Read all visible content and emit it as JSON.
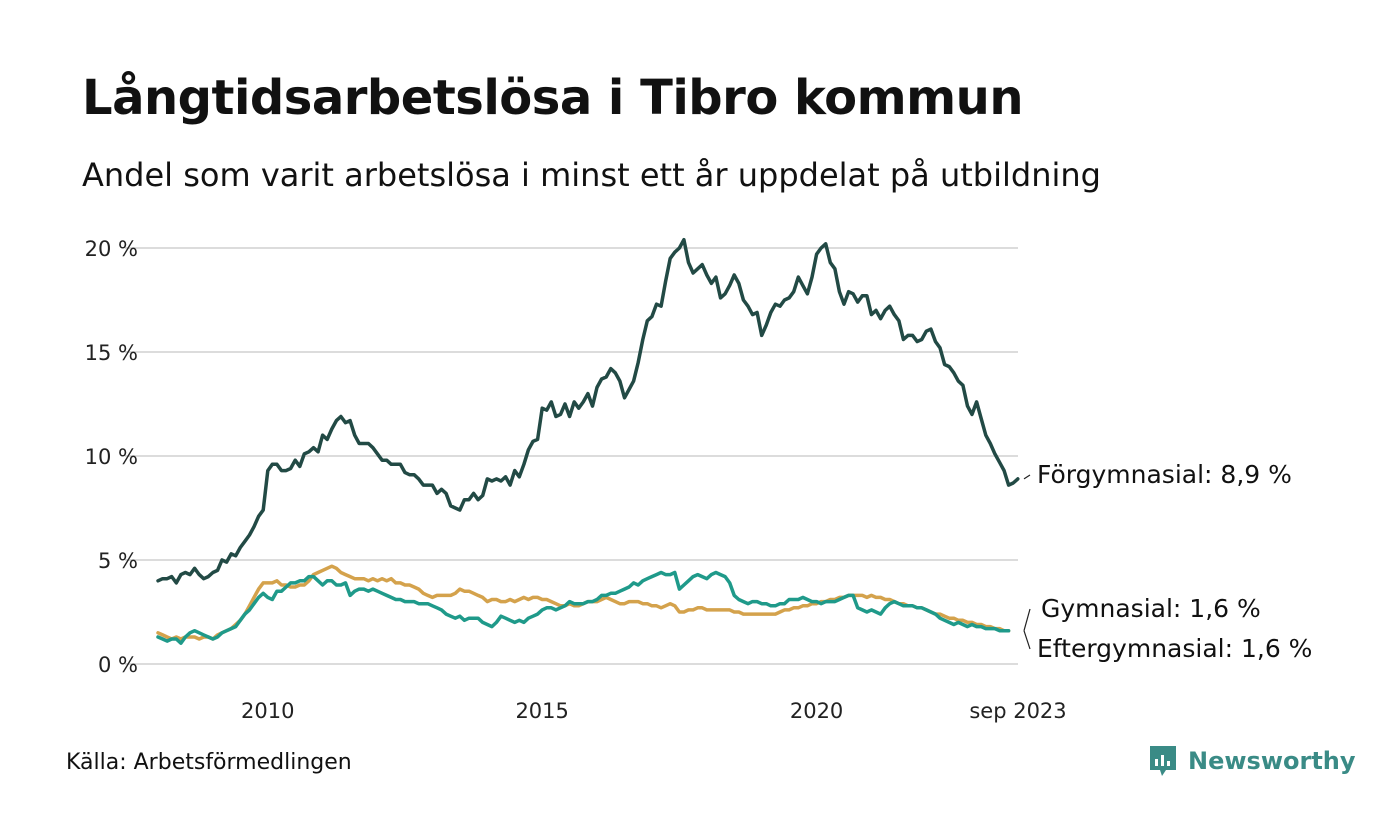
{
  "title": "Långtidsarbetslösa i Tibro kommun",
  "subtitle": "Andel som varit arbetslösa i minst ett år uppdelat på utbildning",
  "source": "Källa: Arbetsförmedlingen",
  "brand": {
    "name": "Newsworthy",
    "icon": "newsworthy-logo-icon",
    "color": "#3a8b86"
  },
  "chart_data": {
    "type": "line",
    "title": "Långtidsarbetslösa i Tibro kommun",
    "xlabel": "",
    "ylabel": "",
    "x_start": 2008.0,
    "x_step": 0.08333,
    "xlim": [
      2008.0,
      2023.67
    ],
    "ylim": [
      0,
      20
    ],
    "grid": true,
    "y_ticks": [
      {
        "value": 0,
        "label": "0 %"
      },
      {
        "value": 5,
        "label": "5 %"
      },
      {
        "value": 10,
        "label": "10 %"
      },
      {
        "value": 15,
        "label": "15 %"
      },
      {
        "value": 20,
        "label": "20 %"
      }
    ],
    "x_ticks": [
      {
        "value": 2010,
        "label": "2010"
      },
      {
        "value": 2015,
        "label": "2015"
      },
      {
        "value": 2020,
        "label": "2020"
      },
      {
        "value": 2023.67,
        "label": "sep 2023"
      }
    ],
    "series": [
      {
        "name": "Förgymnasial",
        "label": "Förgymnasial: 8,9 %",
        "color": "#224a45",
        "values": [
          4.0,
          4.1,
          4.1,
          4.2,
          3.9,
          4.3,
          4.4,
          4.3,
          4.6,
          4.3,
          4.1,
          4.2,
          4.4,
          4.5,
          5.0,
          4.9,
          5.3,
          5.2,
          5.6,
          5.9,
          6.2,
          6.6,
          7.1,
          7.4,
          9.3,
          9.6,
          9.6,
          9.3,
          9.3,
          9.4,
          9.8,
          9.5,
          10.1,
          10.2,
          10.4,
          10.2,
          11.0,
          10.8,
          11.3,
          11.7,
          11.9,
          11.6,
          11.7,
          11.0,
          10.6,
          10.6,
          10.6,
          10.4,
          10.1,
          9.8,
          9.8,
          9.6,
          9.6,
          9.6,
          9.2,
          9.1,
          9.1,
          8.9,
          8.6,
          8.6,
          8.6,
          8.2,
          8.4,
          8.2,
          7.6,
          7.5,
          7.4,
          7.9,
          7.9,
          8.2,
          7.9,
          8.1,
          8.9,
          8.8,
          8.9,
          8.8,
          9.0,
          8.6,
          9.3,
          9.0,
          9.6,
          10.3,
          10.7,
          10.8,
          12.3,
          12.2,
          12.6,
          11.9,
          12.0,
          12.5,
          11.9,
          12.6,
          12.3,
          12.6,
          13.0,
          12.4,
          13.3,
          13.7,
          13.8,
          14.2,
          14.0,
          13.6,
          12.8,
          13.2,
          13.6,
          14.5,
          15.6,
          16.5,
          16.7,
          17.3,
          17.2,
          18.4,
          19.5,
          19.8,
          20.0,
          20.4,
          19.3,
          18.8,
          19.0,
          19.2,
          18.7,
          18.3,
          18.6,
          17.6,
          17.8,
          18.2,
          18.7,
          18.3,
          17.5,
          17.2,
          16.8,
          16.9,
          15.8,
          16.3,
          16.9,
          17.3,
          17.2,
          17.5,
          17.6,
          17.9,
          18.6,
          18.2,
          17.8,
          18.6,
          19.7,
          20.0,
          20.2,
          19.3,
          19.0,
          17.9,
          17.3,
          17.9,
          17.8,
          17.4,
          17.7,
          17.7,
          16.8,
          17.0,
          16.6,
          17.0,
          17.2,
          16.8,
          16.5,
          15.6,
          15.8,
          15.8,
          15.5,
          15.6,
          16.0,
          16.1,
          15.5,
          15.2,
          14.4,
          14.3,
          14.0,
          13.6,
          13.4,
          12.4,
          12.0,
          12.6,
          11.8,
          11.0,
          10.6,
          10.1,
          9.7,
          9.3,
          8.6,
          8.7,
          8.9
        ]
      },
      {
        "name": "Gymnasial",
        "label": "Gymnasial: 1,6 %",
        "color": "#1f9a8a",
        "values": [
          1.3,
          1.2,
          1.1,
          1.2,
          1.2,
          1.0,
          1.3,
          1.5,
          1.6,
          1.5,
          1.4,
          1.3,
          1.2,
          1.3,
          1.5,
          1.6,
          1.7,
          1.8,
          2.1,
          2.4,
          2.6,
          2.9,
          3.2,
          3.4,
          3.2,
          3.1,
          3.5,
          3.5,
          3.7,
          3.9,
          3.9,
          4.0,
          4.0,
          4.2,
          4.2,
          4.0,
          3.8,
          4.0,
          4.0,
          3.8,
          3.8,
          3.9,
          3.3,
          3.5,
          3.6,
          3.6,
          3.5,
          3.6,
          3.5,
          3.4,
          3.3,
          3.2,
          3.1,
          3.1,
          3.0,
          3.0,
          3.0,
          2.9,
          2.9,
          2.9,
          2.8,
          2.7,
          2.6,
          2.4,
          2.3,
          2.2,
          2.3,
          2.1,
          2.2,
          2.2,
          2.2,
          2.0,
          1.9,
          1.8,
          2.0,
          2.3,
          2.2,
          2.1,
          2.0,
          2.1,
          2.0,
          2.2,
          2.3,
          2.4,
          2.6,
          2.7,
          2.7,
          2.6,
          2.7,
          2.8,
          3.0,
          2.9,
          2.9,
          2.9,
          3.0,
          3.0,
          3.1,
          3.3,
          3.3,
          3.4,
          3.4,
          3.5,
          3.6,
          3.7,
          3.9,
          3.8,
          4.0,
          4.1,
          4.2,
          4.3,
          4.4,
          4.3,
          4.3,
          4.4,
          3.6,
          3.8,
          4.0,
          4.2,
          4.3,
          4.2,
          4.1,
          4.3,
          4.4,
          4.3,
          4.2,
          3.9,
          3.3,
          3.1,
          3.0,
          2.9,
          3.0,
          3.0,
          2.9,
          2.9,
          2.8,
          2.8,
          2.9,
          2.9,
          3.1,
          3.1,
          3.1,
          3.2,
          3.1,
          3.0,
          3.0,
          2.9,
          3.0,
          3.0,
          3.0,
          3.1,
          3.2,
          3.3,
          3.3,
          2.7,
          2.6,
          2.5,
          2.6,
          2.5,
          2.4,
          2.7,
          2.9,
          3.0,
          2.9,
          2.8,
          2.8,
          2.8,
          2.7,
          2.7,
          2.6,
          2.5,
          2.4,
          2.2,
          2.1,
          2.0,
          1.9,
          2.0,
          1.9,
          1.8,
          1.9,
          1.8,
          1.8,
          1.7,
          1.7,
          1.7,
          1.6,
          1.6,
          1.6
        ]
      },
      {
        "name": "Eftergymnasial",
        "label": "Eftergymnasial: 1,6 %",
        "color": "#d4a24c",
        "values": [
          1.5,
          1.4,
          1.3,
          1.2,
          1.3,
          1.2,
          1.3,
          1.3,
          1.3,
          1.2,
          1.3,
          1.3,
          1.2,
          1.4,
          1.5,
          1.6,
          1.7,
          1.9,
          2.1,
          2.4,
          2.8,
          3.2,
          3.6,
          3.9,
          3.9,
          3.9,
          4.0,
          3.8,
          3.8,
          3.7,
          3.7,
          3.8,
          3.8,
          4.0,
          4.3,
          4.4,
          4.5,
          4.6,
          4.7,
          4.6,
          4.4,
          4.3,
          4.2,
          4.1,
          4.1,
          4.1,
          4.0,
          4.1,
          4.0,
          4.1,
          4.0,
          4.1,
          3.9,
          3.9,
          3.8,
          3.8,
          3.7,
          3.6,
          3.4,
          3.3,
          3.2,
          3.3,
          3.3,
          3.3,
          3.3,
          3.4,
          3.6,
          3.5,
          3.5,
          3.4,
          3.3,
          3.2,
          3.0,
          3.1,
          3.1,
          3.0,
          3.0,
          3.1,
          3.0,
          3.1,
          3.2,
          3.1,
          3.2,
          3.2,
          3.1,
          3.1,
          3.0,
          2.9,
          2.8,
          2.8,
          2.9,
          2.8,
          2.8,
          2.9,
          3.0,
          3.0,
          3.0,
          3.1,
          3.2,
          3.1,
          3.0,
          2.9,
          2.9,
          3.0,
          3.0,
          3.0,
          2.9,
          2.9,
          2.8,
          2.8,
          2.7,
          2.8,
          2.9,
          2.8,
          2.5,
          2.5,
          2.6,
          2.6,
          2.7,
          2.7,
          2.6,
          2.6,
          2.6,
          2.6,
          2.6,
          2.6,
          2.5,
          2.5,
          2.4,
          2.4,
          2.4,
          2.4,
          2.4,
          2.4,
          2.4,
          2.4,
          2.5,
          2.6,
          2.6,
          2.7,
          2.7,
          2.8,
          2.8,
          2.9,
          2.9,
          3.0,
          3.0,
          3.1,
          3.1,
          3.2,
          3.2,
          3.3,
          3.3,
          3.3,
          3.3,
          3.2,
          3.3,
          3.2,
          3.2,
          3.1,
          3.1,
          3.0,
          2.9,
          2.9,
          2.8,
          2.8,
          2.7,
          2.7,
          2.6,
          2.5,
          2.4,
          2.4,
          2.3,
          2.2,
          2.2,
          2.1,
          2.1,
          2.0,
          2.0,
          1.9,
          1.9,
          1.8,
          1.8,
          1.7,
          1.7,
          1.6,
          1.6
        ]
      }
    ]
  }
}
